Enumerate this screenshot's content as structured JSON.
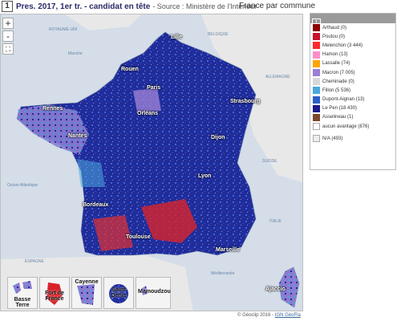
{
  "header": {
    "index": "1",
    "title": "Pres. 2017, 1er tr. - candidat en tête",
    "source": "- Source : Ministère de l'Intérieur",
    "view": "France par commune"
  },
  "controls": {
    "zoom_in": "+",
    "zoom_out": "-",
    "fullscreen": "⛶"
  },
  "map": {
    "seas": [
      "Manche",
      "Océan Atlantique",
      "ESPAGNE",
      "Méditerranée",
      "ITALIE",
      "SUISSE",
      "ALLEMAGNE",
      "BELGIQUE",
      "ROYAUME-UNI"
    ],
    "cities": [
      "Lille",
      "Rouen",
      "Paris",
      "Strasbourg",
      "Rennes",
      "Orléans",
      "Nantes",
      "Dijon",
      "Lyon",
      "Bordeaux",
      "Toulouse",
      "Marseille",
      "Ajaccio"
    ],
    "insets": [
      "Basse Terre",
      "Fort de France",
      "Cayenne",
      "Saint Denis",
      "Mamoudzou"
    ]
  },
  "legend": {
    "index": "1",
    "items": [
      {
        "label": "Arthaud (0)",
        "color": "#8b0000"
      },
      {
        "label": "Poutou (0)",
        "color": "#c8102e"
      },
      {
        "label": "Melenchon (3 444)",
        "color": "#ff2a2a"
      },
      {
        "label": "Hamon (13)",
        "color": "#ff8fc8"
      },
      {
        "label": "Lassalle (74)",
        "color": "#ffa500"
      },
      {
        "label": "Macron (7 005)",
        "color": "#9b7fd4"
      },
      {
        "label": "Cheminade (0)",
        "color": "#d8d8d8"
      },
      {
        "label": "Fillon (5 536)",
        "color": "#4aa8dc"
      },
      {
        "label": "Dupont-Aignan (13)",
        "color": "#2a5fc8"
      },
      {
        "label": "Le Pen (18 430)",
        "color": "#1a1a8c"
      },
      {
        "label": "Asselineau (1)",
        "color": "#7a4a2a"
      },
      {
        "label": "aucun avantage (876)",
        "color": "#ffffff"
      },
      {
        "label": "N/A (493)",
        "color": "#eeeeee"
      }
    ]
  },
  "footer": {
    "copyright": "© Géoclip 2016 -",
    "link": "IGN GéoFla"
  }
}
